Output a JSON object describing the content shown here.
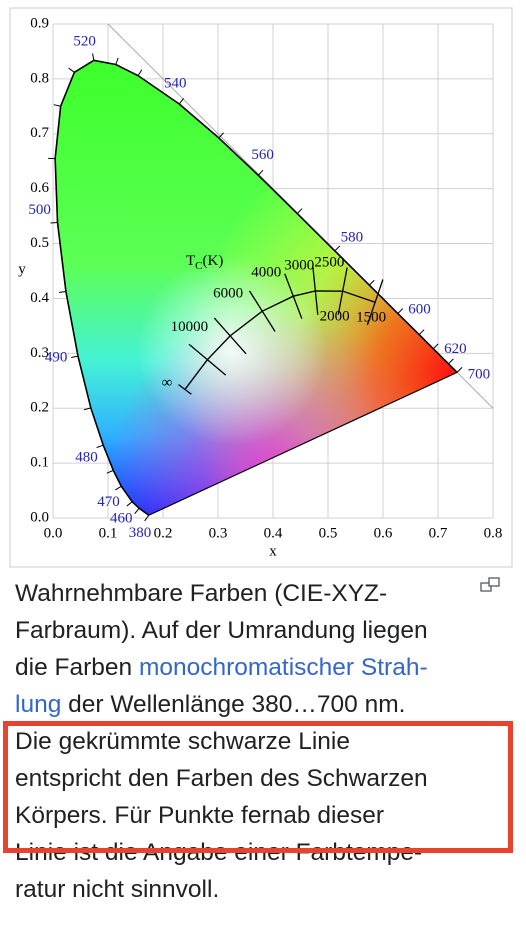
{
  "chart_data": {
    "type": "chromaticity",
    "xlim": [
      0,
      0.8
    ],
    "ylim": [
      0,
      0.9
    ],
    "xticks": [
      {
        "value": 0,
        "label": "0.0"
      },
      0.1,
      0.2,
      0.3,
      0.4,
      0.5,
      0.6,
      0.7,
      0.8
    ],
    "yticks": [
      {
        "value": 0,
        "label": "0.0"
      },
      0.1,
      0.2,
      0.3,
      0.4,
      0.5,
      0.6,
      0.7,
      0.8,
      0.9
    ],
    "x_label": "x",
    "y_label": "y",
    "grid": true,
    "spectral_locus": {
      "x": [
        0.1741,
        0.1566,
        0.144,
        0.1241,
        0.1096,
        0.0913,
        0.0687,
        0.0454,
        0.0235,
        0.0082,
        0.0039,
        0.0139,
        0.0389,
        0.0743,
        0.1142,
        0.1547,
        0.2296,
        0.3016,
        0.3731,
        0.4441,
        0.5125,
        0.5752,
        0.627,
        0.6658,
        0.6915,
        0.719,
        0.7347
      ],
      "y": [
        0.005,
        0.0177,
        0.0297,
        0.0578,
        0.0868,
        0.1327,
        0.2007,
        0.295,
        0.4127,
        0.5384,
        0.6548,
        0.7502,
        0.812,
        0.8338,
        0.8262,
        0.8059,
        0.7543,
        0.6923,
        0.6245,
        0.5547,
        0.4866,
        0.4242,
        0.3725,
        0.334,
        0.3083,
        0.2809,
        0.2653
      ]
    },
    "wavelength_labels": [
      {
        "value": 520,
        "x": 0.0743,
        "y": 0.8338
      },
      {
        "value": 540,
        "x": 0.2296,
        "y": 0.7543
      },
      {
        "value": 560,
        "x": 0.3731,
        "y": 0.6245
      },
      {
        "value": 580,
        "x": 0.5125,
        "y": 0.4866
      },
      {
        "value": 600,
        "x": 0.627,
        "y": 0.3725
      },
      {
        "value": 620,
        "x": 0.6915,
        "y": 0.3083
      },
      {
        "value": 700,
        "x": 0.7347,
        "y": 0.2653
      },
      {
        "value": 500,
        "x": 0.0082,
        "y": 0.5384
      },
      {
        "value": 490,
        "x": 0.0454,
        "y": 0.295
      },
      {
        "value": 480,
        "x": 0.0913,
        "y": 0.1327
      },
      {
        "value": 470,
        "x": 0.1241,
        "y": 0.0578
      },
      {
        "value": 460,
        "x": 0.144,
        "y": 0.0297
      },
      {
        "value": 380,
        "x": 0.1741,
        "y": 0.005
      }
    ],
    "planckian": {
      "temperatures": [
        "∞",
        10000,
        6000,
        4000,
        3000,
        2500,
        2000,
        1500
      ],
      "x": [
        0.2399,
        0.2807,
        0.3221,
        0.3805,
        0.4369,
        0.477,
        0.5267,
        0.5857
      ],
      "y": [
        0.2342,
        0.2884,
        0.3318,
        0.3768,
        0.4041,
        0.4137,
        0.4133,
        0.3931
      ]
    },
    "temperature_title": {
      "main": "T",
      "sub": "C",
      "unit": "(K)"
    }
  },
  "caption": [
    [
      {
        "text": "Wahrnehmbare Farben (CIE-XYZ-",
        "link": false
      }
    ],
    [
      {
        "text": "Farbraum). Auf der Umrandung liegen",
        "link": false
      }
    ],
    [
      {
        "text": "die Farben ",
        "link": false
      },
      {
        "text": "monochromatischer Strah-",
        "link": true
      }
    ],
    [
      {
        "text": "lung",
        "link": true
      },
      {
        "text": " der Wellenlänge 380…700 nm.",
        "link": false
      }
    ],
    [
      {
        "text": "Die gekrümmte schwarze Linie",
        "link": false
      }
    ],
    [
      {
        "text": "entspricht den Farben des Schwarzen",
        "link": false
      }
    ],
    [
      {
        "text": "Körpers. Für Punkte fernab dieser",
        "link": false
      }
    ],
    [
      {
        "text": "Linie ist die Angabe einer Farbtempe-",
        "link": false
      }
    ],
    [
      {
        "text": "ratur nicht sinnvoll.",
        "link": false
      }
    ]
  ]
}
